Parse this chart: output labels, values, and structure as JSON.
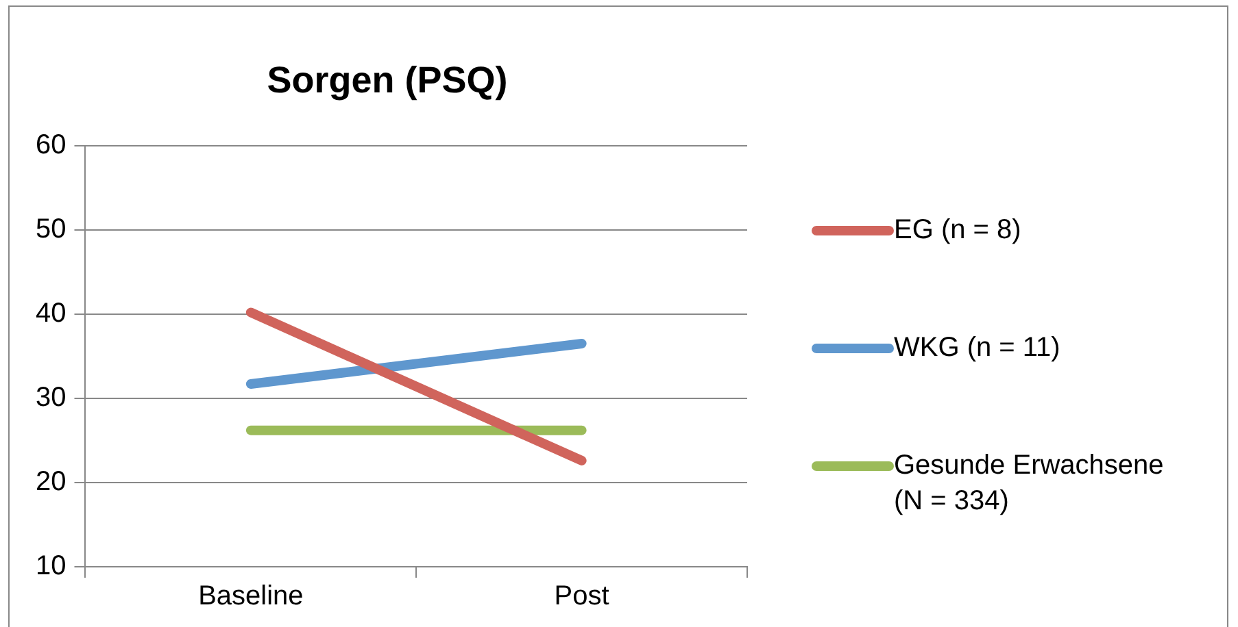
{
  "chart_data": {
    "type": "line",
    "title": "Sorgen (PSQ)",
    "categories": [
      "Baseline",
      "Post"
    ],
    "series": [
      {
        "name": "EG (n = 8)",
        "color": "#d0645c",
        "values": [
          40.2,
          22.6
        ]
      },
      {
        "name": "WKG (n = 11)",
        "color": "#5f97ce",
        "values": [
          31.7,
          36.5
        ]
      },
      {
        "name": "Gesunde Erwachsene (N = 334)",
        "color": "#9bbb59",
        "values": [
          26.2,
          26.2
        ]
      }
    ],
    "ylim": [
      10,
      60
    ],
    "yticks": [
      10,
      20,
      30,
      40,
      50,
      60
    ],
    "grid": "y",
    "legend": "right",
    "marker": "none",
    "line_style": "solid"
  }
}
